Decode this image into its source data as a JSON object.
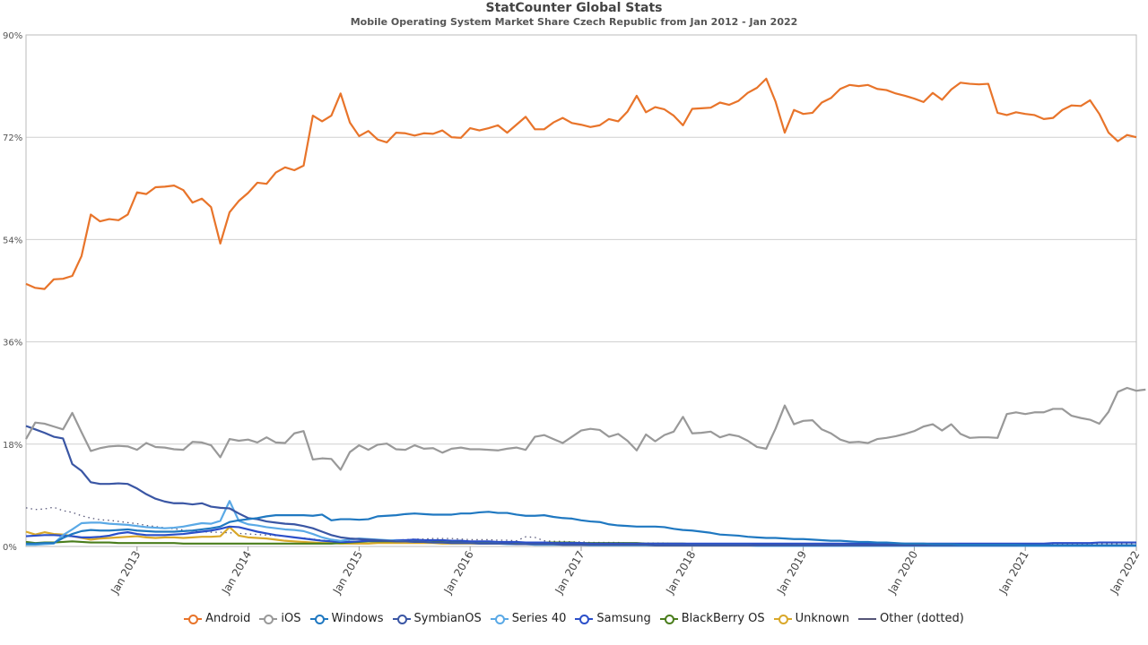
{
  "chart_data": {
    "type": "line",
    "title": "StatCounter Global Stats",
    "subtitle": "Mobile Operating System Market Share Czech Republic from Jan 2012 - Jan 2022",
    "xlabel": "",
    "ylabel": "",
    "x_start": "2012-01",
    "x_end": "2022-01",
    "ylim": [
      0,
      90
    ],
    "y_ticks": [
      "0%",
      "18%",
      "36%",
      "54%",
      "72%",
      "90%"
    ],
    "x_ticks": [
      "Jan 2013",
      "Jan 2014",
      "Jan 2015",
      "Jan 2016",
      "Jan 2017",
      "Jan 2018",
      "Jan 2019",
      "Jan 2020",
      "Jan 2021",
      "Jan 2022"
    ],
    "grid": true,
    "legend_position": "bottom",
    "series": [
      {
        "name": "Android",
        "color": "#e8742a",
        "dotted": false,
        "values": [
          46.2,
          45.5,
          45.3,
          47.0,
          47.1,
          47.6,
          51.1,
          58.4,
          57.2,
          57.6,
          57.4,
          58.4,
          62.3,
          62.0,
          63.2,
          63.3,
          63.5,
          62.7,
          60.5,
          61.2,
          59.7,
          53.3,
          58.8,
          60.8,
          62.2,
          64.0,
          63.8,
          65.8,
          66.7,
          66.2,
          67.0,
          75.8,
          74.8,
          75.8,
          79.7,
          74.6,
          72.2,
          73.1,
          71.6,
          71.1,
          72.8,
          72.7,
          72.3,
          72.7,
          72.6,
          73.2,
          72.0,
          71.9,
          73.6,
          73.2,
          73.6,
          74.1,
          72.8,
          74.2,
          75.6,
          73.4,
          73.4,
          74.6,
          75.4,
          74.5,
          74.2,
          73.8,
          74.1,
          75.2,
          74.8,
          76.5,
          79.3,
          76.4,
          77.3,
          76.9,
          75.8,
          74.1,
          77.0,
          77.1,
          77.2,
          78.1,
          77.7,
          78.4,
          79.8,
          80.7,
          82.3,
          78.3,
          72.8,
          76.8,
          76.1,
          76.3,
          78.1,
          78.9,
          80.5,
          81.2,
          81.0,
          81.2,
          80.5,
          80.3,
          79.7,
          79.3,
          78.8,
          78.2,
          79.8,
          78.6,
          80.4,
          81.6,
          81.4,
          81.3,
          81.4,
          76.3,
          75.9,
          76.4,
          76.1,
          75.9,
          75.2,
          75.4,
          76.8,
          77.6,
          77.5,
          78.5,
          76.1,
          72.8,
          71.3,
          72.4,
          72.0
        ]
      },
      {
        "name": "iOS",
        "color": "#999999",
        "dotted": false,
        "values": [
          18.9,
          21.8,
          21.6,
          21.1,
          20.6,
          23.5,
          20.1,
          16.8,
          17.3,
          17.6,
          17.7,
          17.6,
          17.0,
          18.2,
          17.5,
          17.4,
          17.1,
          17.0,
          18.4,
          18.3,
          17.8,
          15.7,
          18.9,
          18.6,
          18.8,
          18.3,
          19.2,
          18.3,
          18.2,
          19.9,
          20.3,
          15.3,
          15.5,
          15.4,
          13.5,
          16.6,
          17.8,
          17.0,
          17.9,
          18.1,
          17.1,
          17.0,
          17.8,
          17.2,
          17.3,
          16.5,
          17.2,
          17.4,
          17.1,
          17.1,
          17.0,
          16.9,
          17.2,
          17.4,
          17.0,
          19.3,
          19.6,
          18.9,
          18.2,
          19.3,
          20.4,
          20.7,
          20.5,
          19.3,
          19.8,
          18.6,
          16.9,
          19.7,
          18.5,
          19.6,
          20.2,
          22.8,
          19.9,
          20.0,
          20.2,
          19.2,
          19.7,
          19.4,
          18.6,
          17.5,
          17.2,
          20.7,
          24.8,
          21.5,
          22.1,
          22.2,
          20.6,
          19.9,
          18.8,
          18.3,
          18.4,
          18.2,
          18.9,
          19.1,
          19.4,
          19.8,
          20.3,
          21.1,
          21.5,
          20.4,
          21.5,
          19.8,
          19.1,
          19.2,
          19.2,
          19.1,
          23.3,
          23.6,
          23.3,
          23.6,
          23.6,
          24.2,
          24.2,
          23.0,
          22.6,
          22.3,
          21.6,
          23.7,
          27.2,
          27.9,
          27.4,
          27.6
        ]
      },
      {
        "name": "Windows",
        "color": "#1f78c1",
        "dotted": false,
        "values": [
          0.5,
          0.5,
          0.6,
          0.6,
          1.5,
          2.2,
          2.7,
          2.9,
          2.8,
          2.8,
          2.9,
          3.0,
          2.8,
          2.7,
          2.6,
          2.6,
          2.6,
          2.7,
          2.8,
          3.0,
          3.2,
          3.5,
          4.3,
          4.6,
          4.8,
          5.0,
          5.3,
          5.5,
          5.5,
          5.5,
          5.5,
          5.4,
          5.6,
          4.6,
          4.8,
          4.8,
          4.7,
          4.8,
          5.3,
          5.4,
          5.5,
          5.7,
          5.8,
          5.7,
          5.6,
          5.6,
          5.6,
          5.8,
          5.8,
          6.0,
          6.1,
          5.9,
          5.9,
          5.6,
          5.4,
          5.4,
          5.5,
          5.2,
          5.0,
          4.9,
          4.6,
          4.4,
          4.3,
          3.9,
          3.7,
          3.6,
          3.5,
          3.5,
          3.5,
          3.4,
          3.1,
          2.9,
          2.8,
          2.6,
          2.4,
          2.1,
          2.0,
          1.9,
          1.7,
          1.6,
          1.5,
          1.5,
          1.4,
          1.3,
          1.3,
          1.2,
          1.1,
          1.0,
          1.0,
          0.9,
          0.8,
          0.8,
          0.7,
          0.7,
          0.6,
          0.5,
          0.5,
          0.5,
          0.4,
          0.4,
          0.4,
          0.3,
          0.3,
          0.3,
          0.3,
          0.3,
          0.3,
          0.3,
          0.2,
          0.2,
          0.2,
          0.2,
          0.2,
          0.2,
          0.2,
          0.2,
          0.2,
          0.2,
          0.2,
          0.2,
          0.2
        ]
      },
      {
        "name": "SymbianOS",
        "color": "#3a56a4",
        "dotted": false,
        "values": [
          21.2,
          20.6,
          20.0,
          19.3,
          19.0,
          14.5,
          13.3,
          11.3,
          11.0,
          11.0,
          11.1,
          11.0,
          10.2,
          9.2,
          8.4,
          7.9,
          7.6,
          7.6,
          7.4,
          7.6,
          7.0,
          6.8,
          6.7,
          5.8,
          5.0,
          4.8,
          4.4,
          4.2,
          4.0,
          3.9,
          3.6,
          3.2,
          2.6,
          2.0,
          1.6,
          1.4,
          1.3,
          1.2,
          1.1,
          1.0,
          0.9,
          0.9,
          0.8,
          0.8,
          0.7,
          0.7,
          0.6,
          0.6,
          0.6,
          0.5,
          0.5,
          0.5,
          0.5,
          0.4,
          0.4,
          0.4,
          0.4,
          0.4,
          0.3,
          0.3,
          0.3,
          0.3,
          0.3,
          0.3,
          0.3,
          0.3,
          0.3,
          0.3,
          0.2,
          0.2,
          0.2,
          0.2,
          0.2,
          0.2,
          0.2,
          0.2,
          0.2,
          0.2,
          0.2,
          0.2,
          0.2,
          0.2,
          0.2,
          0.2,
          0.2,
          0.2,
          0.2,
          0.2,
          0.2,
          0.2,
          0.2,
          0.2,
          0.2,
          0.2,
          0.2,
          0.2,
          0.2,
          0.2,
          0.2,
          0.2,
          0.2,
          0.2,
          0.2,
          0.2,
          0.2,
          0.2,
          0.2,
          0.2,
          0.2,
          0.2,
          0.2,
          0.2,
          0.2,
          0.2,
          0.2,
          0.2,
          0.2,
          0.2,
          0.2,
          0.2,
          0.2
        ]
      },
      {
        "name": "Series 40",
        "color": "#5aa9e6",
        "dotted": false,
        "values": [
          0.3,
          0.3,
          0.4,
          0.5,
          2.0,
          3.0,
          4.1,
          4.2,
          4.2,
          4.0,
          3.9,
          3.8,
          3.6,
          3.4,
          3.3,
          3.2,
          3.3,
          3.5,
          3.8,
          4.1,
          4.0,
          4.5,
          8.0,
          4.5,
          3.9,
          3.7,
          3.4,
          3.2,
          3.0,
          2.9,
          2.7,
          2.2,
          1.6,
          1.2,
          1.0,
          1.2,
          1.4,
          1.3,
          1.2,
          1.1,
          1.0,
          0.9,
          0.8,
          0.8,
          0.7,
          0.7,
          0.6,
          0.6,
          0.6,
          0.5,
          0.5,
          0.5,
          0.4,
          0.4,
          0.4,
          0.3,
          0.3,
          0.3,
          0.3,
          0.3,
          0.3,
          0.2,
          0.2,
          0.2,
          0.2,
          0.2,
          0.2,
          0.2,
          0.2,
          0.2,
          0.2,
          0.2,
          0.2,
          0.2,
          0.2,
          0.2,
          0.2,
          0.2,
          0.2,
          0.1,
          0.1,
          0.1,
          0.1,
          0.1,
          0.1,
          0.1,
          0.1,
          0.1,
          0.1,
          0.1,
          0.1,
          0.1,
          0.1,
          0.1,
          0.1,
          0.1,
          0.1,
          0.1,
          0.1,
          0.1,
          0.1,
          0.1,
          0.1,
          0.1,
          0.1,
          0.1,
          0.1,
          0.1,
          0.1,
          0.1,
          0.1,
          0.1,
          0.1,
          0.1,
          0.1,
          0.1,
          0.1,
          0.1,
          0.1,
          0.1,
          0.1
        ]
      },
      {
        "name": "Samsung",
        "color": "#2b4fc9",
        "dotted": false,
        "values": [
          1.8,
          1.9,
          2.0,
          2.0,
          1.9,
          1.8,
          1.6,
          1.6,
          1.7,
          1.9,
          2.3,
          2.5,
          2.2,
          2.0,
          2.0,
          2.0,
          2.1,
          2.2,
          2.4,
          2.6,
          2.8,
          3.1,
          3.5,
          3.4,
          3.0,
          2.6,
          2.3,
          2.0,
          1.8,
          1.6,
          1.4,
          1.2,
          1.0,
          0.9,
          0.8,
          0.8,
          0.9,
          1.0,
          1.0,
          1.0,
          1.1,
          1.1,
          1.2,
          1.1,
          1.1,
          1.1,
          1.0,
          1.0,
          0.9,
          0.9,
          0.9,
          0.8,
          0.8,
          0.8,
          0.7,
          0.7,
          0.7,
          0.6,
          0.6,
          0.6,
          0.6,
          0.5,
          0.5,
          0.5,
          0.5,
          0.5,
          0.5,
          0.5,
          0.5,
          0.5,
          0.5,
          0.5,
          0.5,
          0.5,
          0.5,
          0.5,
          0.5,
          0.5,
          0.5,
          0.5,
          0.5,
          0.5,
          0.5,
          0.5,
          0.5,
          0.5,
          0.5,
          0.5,
          0.5,
          0.5,
          0.5,
          0.5,
          0.5,
          0.5,
          0.5,
          0.5,
          0.5,
          0.5,
          0.5,
          0.5,
          0.5,
          0.5,
          0.5,
          0.5,
          0.5,
          0.5,
          0.5,
          0.5,
          0.5,
          0.5,
          0.5,
          0.6,
          0.6,
          0.6,
          0.6,
          0.6,
          0.7,
          0.7,
          0.7,
          0.7,
          0.7
        ]
      },
      {
        "name": "BlackBerry OS",
        "color": "#4a7d1c",
        "dotted": false,
        "values": [
          0.8,
          0.6,
          0.7,
          0.7,
          0.8,
          0.9,
          0.8,
          0.7,
          0.7,
          0.7,
          0.6,
          0.6,
          0.6,
          0.6,
          0.6,
          0.6,
          0.6,
          0.5,
          0.5,
          0.5,
          0.5,
          0.5,
          0.5,
          0.5,
          0.5,
          0.5,
          0.5,
          0.5,
          0.5,
          0.5,
          0.5,
          0.5,
          0.5,
          0.5,
          0.6,
          0.7,
          0.8,
          0.9,
          0.9,
          0.9,
          0.9,
          0.9,
          0.9,
          0.8,
          0.8,
          0.8,
          0.8,
          0.8,
          0.8,
          0.7,
          0.7,
          0.7,
          0.7,
          0.7,
          0.7,
          0.7,
          0.7,
          0.7,
          0.7,
          0.7,
          0.6,
          0.6,
          0.6,
          0.6,
          0.6,
          0.6,
          0.6,
          0.5,
          0.5,
          0.5,
          0.5,
          0.5,
          0.4,
          0.4,
          0.4,
          0.4,
          0.4,
          0.3,
          0.3,
          0.3,
          0.3,
          0.3,
          0.3,
          0.2,
          0.2,
          0.2,
          0.2,
          0.2,
          0.2,
          0.2,
          0.2,
          0.2,
          0.2,
          0.2,
          0.2,
          0.1,
          0.1,
          0.1,
          0.1,
          0.1,
          0.1,
          0.1,
          0.1,
          0.1,
          0.1,
          0.1,
          0.1,
          0.1,
          0.1,
          0.1,
          0.1,
          0.1,
          0.1,
          0.1,
          0.1,
          0.1,
          0.1,
          0.1,
          0.1,
          0.1,
          0.1
        ]
      },
      {
        "name": "Unknown",
        "color": "#d9a82a",
        "dotted": false,
        "values": [
          2.6,
          2.1,
          2.5,
          2.2,
          2.1,
          1.8,
          1.5,
          1.2,
          1.4,
          1.5,
          1.6,
          1.7,
          1.8,
          1.6,
          1.5,
          1.6,
          1.6,
          1.5,
          1.6,
          1.7,
          1.7,
          1.8,
          3.4,
          1.9,
          1.6,
          1.5,
          1.4,
          1.2,
          1.0,
          0.9,
          0.8,
          0.7,
          0.6,
          0.6,
          0.5,
          0.5,
          0.5,
          0.5,
          0.6,
          0.6,
          0.6,
          0.6,
          0.6,
          0.6,
          0.6,
          0.5,
          0.5,
          0.5,
          0.5,
          0.5,
          0.5,
          0.5,
          0.5,
          0.5,
          0.5,
          0.5,
          0.5,
          0.5,
          0.4,
          0.4,
          0.4,
          0.4,
          0.4,
          0.4,
          0.4,
          0.4,
          0.3,
          0.3,
          0.3,
          0.3,
          0.3,
          0.3,
          0.3,
          0.3,
          0.3,
          0.3,
          0.3,
          0.3,
          0.3,
          0.3,
          0.3,
          0.3,
          0.3,
          0.3,
          0.2,
          0.2,
          0.2,
          0.2,
          0.2,
          0.2,
          0.2,
          0.2,
          0.2,
          0.2,
          0.2,
          0.2,
          0.2,
          0.2,
          0.2,
          0.2,
          0.2,
          0.2,
          0.2,
          0.2,
          0.2,
          0.2,
          0.2,
          0.2,
          0.2,
          0.2,
          0.2,
          0.2,
          0.2,
          0.2,
          0.2,
          0.2,
          0.2,
          0.2,
          0.2,
          0.2,
          0.2
        ]
      },
      {
        "name": "Other (dotted)",
        "color": "#555577",
        "dotted": true,
        "values": [
          6.8,
          6.5,
          6.6,
          6.9,
          6.3,
          6.0,
          5.4,
          5.0,
          4.7,
          4.6,
          4.4,
          4.2,
          4.0,
          3.7,
          3.5,
          3.3,
          3.1,
          2.9,
          2.7,
          2.6,
          2.5,
          2.5,
          2.4,
          2.3,
          2.2,
          2.1,
          2.0,
          1.9,
          1.8,
          1.6,
          1.5,
          1.3,
          1.1,
          1.0,
          0.9,
          0.9,
          0.9,
          1.0,
          1.0,
          1.0,
          1.1,
          1.2,
          1.3,
          1.3,
          1.4,
          1.4,
          1.4,
          1.3,
          1.2,
          1.2,
          1.2,
          1.1,
          1.1,
          1.0,
          1.7,
          1.6,
          1.0,
          0.9,
          0.9,
          0.8,
          0.8,
          0.7,
          0.7,
          0.7,
          0.7,
          0.6,
          0.6,
          0.6,
          0.6,
          0.6,
          0.5,
          0.5,
          0.5,
          0.5,
          0.5,
          0.5,
          0.5,
          0.5,
          0.5,
          0.5,
          0.5,
          0.5,
          0.5,
          0.5,
          0.5,
          0.5,
          0.5,
          0.5,
          0.5,
          0.5,
          0.5,
          0.5,
          0.5,
          0.5,
          0.5,
          0.5,
          0.5,
          0.5,
          0.5,
          0.5,
          0.5,
          0.5,
          0.5,
          0.5,
          0.5,
          0.5,
          0.5,
          0.5,
          0.5,
          0.5,
          0.5,
          0.5,
          0.5,
          0.5,
          0.5,
          0.5,
          0.5,
          0.5,
          0.5,
          0.5,
          0.5
        ]
      }
    ]
  }
}
